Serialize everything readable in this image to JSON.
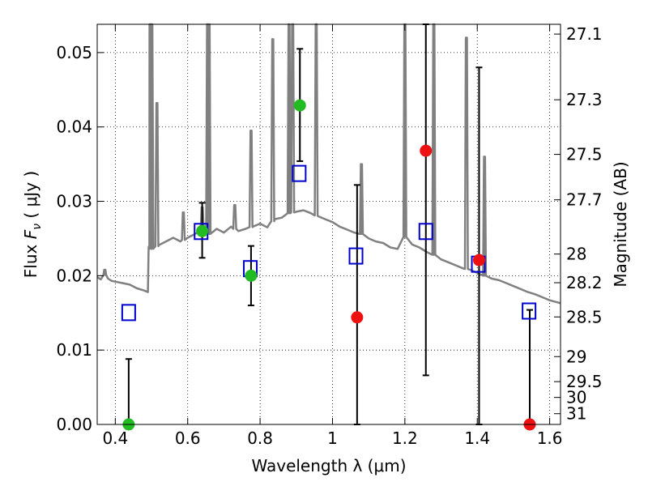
{
  "chart_data": {
    "type": "scatter",
    "xlabel": "Wavelength  λ (μm)",
    "ylabel": "Flux  Fν  ( μJy )",
    "ylabel_parts": {
      "pre": "Flux  ",
      "sym": "F",
      "sub": "ν",
      "post": "  ( μJy )"
    },
    "y2label": "Magnitude (AB)",
    "xlim": [
      0.35,
      1.63
    ],
    "ylim": [
      0.0,
      0.0538
    ],
    "grid": true,
    "x_ticks": [
      0.4,
      0.6,
      0.8,
      1.0,
      1.2,
      1.4,
      1.6
    ],
    "x_tick_labels": [
      "0.4",
      "0.6",
      "0.8",
      "1",
      "1.2",
      "1.4",
      "1.6"
    ],
    "y_ticks": [
      0.0,
      0.01,
      0.02,
      0.03,
      0.04,
      0.05
    ],
    "y_tick_labels": [
      "0.00",
      "0.01",
      "0.02",
      "0.03",
      "0.04",
      "0.05"
    ],
    "mag_ticks": [
      {
        "mag": 27.1,
        "label": "27.1"
      },
      {
        "mag": 27.3,
        "label": "27.3"
      },
      {
        "mag": 27.5,
        "label": "27.5"
      },
      {
        "mag": 27.7,
        "label": "27.7"
      },
      {
        "mag": 28.0,
        "label": "28"
      },
      {
        "mag": 28.2,
        "label": "28.2"
      },
      {
        "mag": 28.5,
        "label": "28.5"
      },
      {
        "mag": 29.0,
        "label": "29"
      },
      {
        "mag": 29.5,
        "label": "29.5"
      },
      {
        "mag": 30.0,
        "label": "30"
      },
      {
        "mag": 31.0,
        "label": "31"
      }
    ],
    "colors": {
      "template": "#808080",
      "model_box": "#0000cc",
      "detection": "#22bb22",
      "upper_limit": "#ee1111",
      "errorbar": "#000000",
      "grid": "#000000"
    },
    "series": [
      {
        "points": [
          {
            "x": 0.437,
            "y": 0.0,
            "err_lo": 0.0,
            "err_hi": 0.0088
          },
          {
            "x": 0.64,
            "y": 0.026,
            "err_lo": 0.0224,
            "err_hi": 0.0298
          },
          {
            "x": 0.775,
            "y": 0.02,
            "err_lo": 0.016,
            "err_hi": 0.024
          },
          {
            "x": 0.91,
            "y": 0.0429,
            "err_lo": 0.0354,
            "err_hi": 0.0505
          }
        ]
      },
      {
        "points": [
          {
            "x": 1.068,
            "y": 0.0144,
            "err_lo": 0.0,
            "err_hi": 0.0322
          },
          {
            "x": 1.258,
            "y": 0.0368,
            "err_lo": 0.0066,
            "err_hi": 0.0538
          },
          {
            "x": 1.405,
            "y": 0.0221,
            "err_lo": 0.0,
            "err_hi": 0.048
          },
          {
            "x": 1.545,
            "y": 0.0,
            "err_lo": 0.0,
            "err_hi": 0.0154
          }
        ]
      },
      {
        "points": [
          {
            "x": 0.437,
            "y": 0.0151
          },
          {
            "x": 0.637,
            "y": 0.026
          },
          {
            "x": 0.773,
            "y": 0.021
          },
          {
            "x": 0.908,
            "y": 0.0338
          },
          {
            "x": 1.065,
            "y": 0.0227
          },
          {
            "x": 1.258,
            "y": 0.026
          },
          {
            "x": 1.403,
            "y": 0.0216
          },
          {
            "x": 1.543,
            "y": 0.0153
          }
        ]
      },
      {
        "type": "line",
        "points": [
          [
            0.35,
            0.0198
          ],
          [
            0.36,
            0.0195
          ],
          [
            0.37,
            0.0201
          ],
          [
            0.38,
            0.0196
          ],
          [
            0.39,
            0.0193
          ],
          [
            0.4,
            0.0192
          ],
          [
            0.42,
            0.019
          ],
          [
            0.44,
            0.0188
          ],
          [
            0.46,
            0.0183
          ],
          [
            0.48,
            0.018
          ],
          [
            0.49,
            0.0178
          ],
          [
            0.494,
            0.024
          ],
          [
            0.5,
            0.0236
          ],
          [
            0.52,
            0.0241
          ],
          [
            0.54,
            0.0246
          ],
          [
            0.56,
            0.0251
          ],
          [
            0.58,
            0.0246
          ],
          [
            0.6,
            0.0251
          ],
          [
            0.62,
            0.0256
          ],
          [
            0.64,
            0.0261
          ],
          [
            0.66,
            0.0256
          ],
          [
            0.68,
            0.0263
          ],
          [
            0.7,
            0.0258
          ],
          [
            0.72,
            0.0266
          ],
          [
            0.74,
            0.026
          ],
          [
            0.76,
            0.0263
          ],
          [
            0.78,
            0.0266
          ],
          [
            0.8,
            0.027
          ],
          [
            0.82,
            0.0265
          ],
          [
            0.84,
            0.0276
          ],
          [
            0.86,
            0.0278
          ],
          [
            0.88,
            0.0284
          ],
          [
            0.9,
            0.0286
          ],
          [
            0.92,
            0.0288
          ],
          [
            0.94,
            0.0284
          ],
          [
            0.96,
            0.028
          ],
          [
            0.98,
            0.0276
          ],
          [
            1.0,
            0.0272
          ],
          [
            1.02,
            0.0266
          ],
          [
            1.04,
            0.0262
          ],
          [
            1.06,
            0.0258
          ],
          [
            1.08,
            0.0256
          ],
          [
            1.1,
            0.025
          ],
          [
            1.12,
            0.0246
          ],
          [
            1.14,
            0.0244
          ],
          [
            1.16,
            0.0238
          ],
          [
            1.18,
            0.0236
          ],
          [
            1.2,
            0.0252
          ],
          [
            1.22,
            0.0242
          ],
          [
            1.24,
            0.0238
          ],
          [
            1.26,
            0.0232
          ],
          [
            1.28,
            0.0228
          ],
          [
            1.3,
            0.0222
          ],
          [
            1.32,
            0.0218
          ],
          [
            1.34,
            0.0214
          ],
          [
            1.36,
            0.021
          ],
          [
            1.38,
            0.0208
          ],
          [
            1.4,
            0.0204
          ],
          [
            1.42,
            0.02
          ],
          [
            1.44,
            0.0196
          ],
          [
            1.46,
            0.0194
          ],
          [
            1.48,
            0.019
          ],
          [
            1.5,
            0.0186
          ],
          [
            1.52,
            0.0182
          ],
          [
            1.54,
            0.0178
          ],
          [
            1.56,
            0.0175
          ],
          [
            1.58,
            0.0171
          ],
          [
            1.6,
            0.0167
          ],
          [
            1.63,
            0.0163
          ]
        ],
        "emission_lines": [
          {
            "x": 0.371,
            "peak": 0.0208
          },
          {
            "x": 0.496,
            "peak": 0.0538
          },
          {
            "x": 0.501,
            "peak": 0.0538
          },
          {
            "x": 0.515,
            "peak": 0.0432
          },
          {
            "x": 0.588,
            "peak": 0.0285
          },
          {
            "x": 0.64,
            "peak": 0.0292
          },
          {
            "x": 0.655,
            "peak": 0.0538
          },
          {
            "x": 0.659,
            "peak": 0.0538
          },
          {
            "x": 0.73,
            "peak": 0.0295
          },
          {
            "x": 0.775,
            "peak": 0.0395
          },
          {
            "x": 0.835,
            "peak": 0.0518
          },
          {
            "x": 0.88,
            "peak": 0.0538
          },
          {
            "x": 0.89,
            "peak": 0.0538
          },
          {
            "x": 0.955,
            "peak": 0.0538
          },
          {
            "x": 1.08,
            "peak": 0.035
          },
          {
            "x": 1.2,
            "peak": 0.0538
          },
          {
            "x": 1.28,
            "peak": 0.0538
          },
          {
            "x": 1.37,
            "peak": 0.052
          },
          {
            "x": 1.42,
            "peak": 0.036
          }
        ]
      }
    ]
  }
}
